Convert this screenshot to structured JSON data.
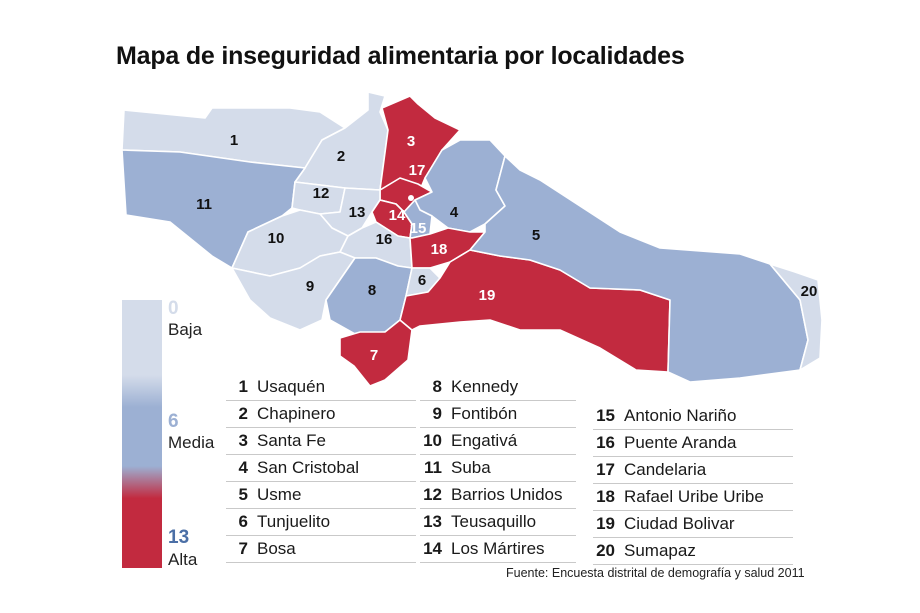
{
  "title": "Mapa de inseguridad alimentaria por localidades",
  "scale": {
    "low_value": "0",
    "low_label": "Baja",
    "mid_value": "6",
    "mid_label": "Media",
    "high_value": "13",
    "high_label": "Alta",
    "colors": {
      "low": "#d4dcea",
      "mid": "#9cb0d3",
      "high": "#c22a3f"
    }
  },
  "regions": [
    {
      "num": "1",
      "level": "low"
    },
    {
      "num": "2",
      "level": "low"
    },
    {
      "num": "3",
      "level": "high"
    },
    {
      "num": "4",
      "level": "mid"
    },
    {
      "num": "5",
      "level": "mid"
    },
    {
      "num": "6",
      "level": "low"
    },
    {
      "num": "7",
      "level": "high"
    },
    {
      "num": "8",
      "level": "mid"
    },
    {
      "num": "9",
      "level": "low"
    },
    {
      "num": "10",
      "level": "low"
    },
    {
      "num": "11",
      "level": "mid"
    },
    {
      "num": "12",
      "level": "low"
    },
    {
      "num": "13",
      "level": "low"
    },
    {
      "num": "14",
      "level": "high"
    },
    {
      "num": "15",
      "level": "mid"
    },
    {
      "num": "16",
      "level": "low"
    },
    {
      "num": "17",
      "level": "high"
    },
    {
      "num": "18",
      "level": "high"
    },
    {
      "num": "19",
      "level": "high"
    },
    {
      "num": "20",
      "level": "low"
    }
  ],
  "legend": [
    [
      {
        "num": "1",
        "name": "Usaquén"
      },
      {
        "num": "2",
        "name": "Chapinero"
      },
      {
        "num": "3",
        "name": "Santa Fe"
      },
      {
        "num": "4",
        "name": "San Cristobal"
      },
      {
        "num": "5",
        "name": "Usme"
      },
      {
        "num": "6",
        "name": "Tunjuelito"
      },
      {
        "num": "7",
        "name": "Bosa"
      }
    ],
    [
      {
        "num": "8",
        "name": "Kennedy"
      },
      {
        "num": "9",
        "name": "Fontibón"
      },
      {
        "num": "10",
        "name": "Engativá"
      },
      {
        "num": "11",
        "name": "Suba"
      },
      {
        "num": "12",
        "name": "Barrios Unidos"
      },
      {
        "num": "13",
        "name": "Teusaquillo"
      },
      {
        "num": "14",
        "name": "Los Mártires"
      }
    ],
    [
      {
        "num": "15",
        "name": "Antonio Nariño"
      },
      {
        "num": "16",
        "name": "Puente Aranda"
      },
      {
        "num": "17",
        "name": "Candelaria"
      },
      {
        "num": "18",
        "name": "Rafael Uribe Uribe"
      },
      {
        "num": "19",
        "name": "Ciudad Bolivar"
      },
      {
        "num": "20",
        "name": "Sumapaz"
      }
    ]
  ],
  "source": "Fuente: Encuesta distrital de demografía y salud 2011"
}
